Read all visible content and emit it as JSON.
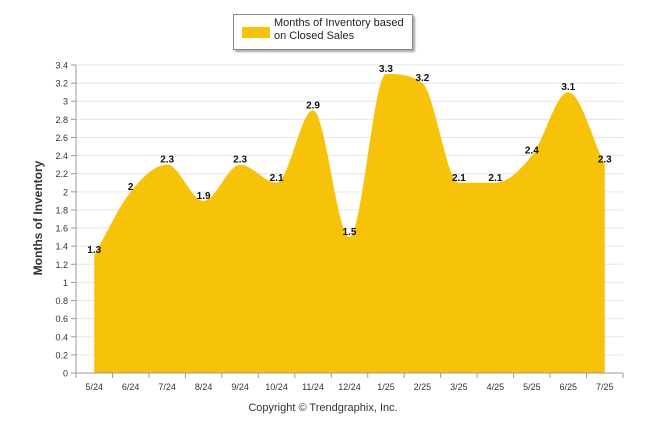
{
  "chart_data": {
    "type": "area",
    "title": "",
    "xlabel": "",
    "ylabel": "Months of Inventory",
    "categories": [
      "5/24",
      "6/24",
      "7/24",
      "8/24",
      "9/24",
      "10/24",
      "11/24",
      "12/24",
      "1/25",
      "2/25",
      "3/25",
      "4/25",
      "5/25",
      "6/25",
      "7/25"
    ],
    "series": [
      {
        "name": "Months of Inventory based on Closed Sales",
        "values": [
          1.3,
          2,
          2.3,
          1.9,
          2.3,
          2.1,
          2.9,
          1.5,
          3.3,
          3.2,
          2.1,
          2.1,
          2.4,
          3.1,
          2.3
        ],
        "data_labels": [
          "1.3",
          "2",
          "2.3",
          "1.9",
          "2.3",
          "2.1",
          "2.9",
          "1.5",
          "3.3",
          "3.2",
          "2.1",
          "2.1",
          "2.4",
          "3.1",
          "2.3"
        ],
        "color": "#F7C30A"
      }
    ],
    "ylim": [
      0,
      3.4
    ],
    "yticks": [
      "0",
      "0.2",
      "0.4",
      "0.6",
      "0.8",
      "1",
      "1.2",
      "1.4",
      "1.6",
      "1.8",
      "2",
      "2.2",
      "2.4",
      "2.6",
      "2.8",
      "3",
      "3.2",
      "3.4"
    ],
    "grid": true,
    "legend_position": "top"
  },
  "legend": {
    "label": "Months of Inventory based on Closed Sales"
  },
  "footer": "Copyright © Trendgraphix, Inc."
}
